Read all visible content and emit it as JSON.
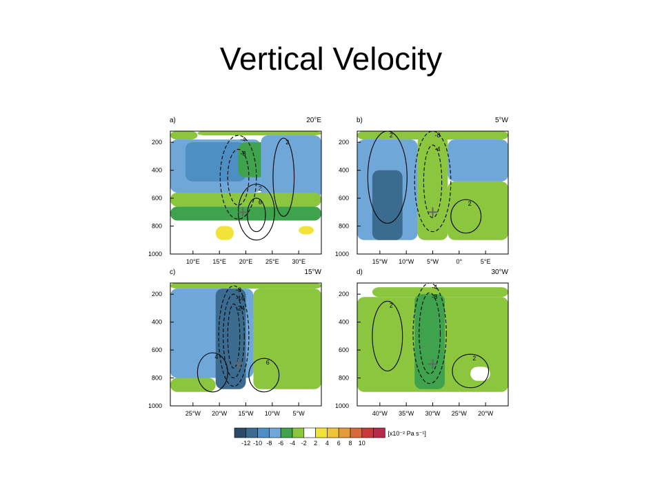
{
  "slide": {
    "title": "Vertical Velocity"
  },
  "colors": {
    "-12": "#2b4a68",
    "-10": "#3b6c8f",
    "-8": "#4d8fc2",
    "-6": "#6fa7d8",
    "-4": "#3fa34d",
    "-2": "#8cc63f",
    "0": "#ffffff",
    "2": "#f2e33a",
    "4": "#f0c437",
    "6": "#e39b3a",
    "8": "#d66a3d",
    "10": "#c9393c",
    "12": "#b52c4a"
  },
  "chart_data": [
    {
      "type": "heatmap",
      "panel_label": "a)",
      "section": "20°E",
      "xticks": [
        "10°E",
        "15°E",
        "20°E",
        "25°E",
        "30°E"
      ],
      "yticks": [
        "200",
        "400",
        "600",
        "800",
        "1000"
      ],
      "ylim": [
        1000,
        100
      ],
      "shading": [
        {
          "x": [
            0,
            0.18
          ],
          "p": [
            120,
            180
          ],
          "level": "-2"
        },
        {
          "x": [
            0.18,
            1
          ],
          "p": [
            120,
            150
          ],
          "level": "-2"
        },
        {
          "x": [
            0,
            0.6
          ],
          "p": [
            180,
            560
          ],
          "level": "-6"
        },
        {
          "x": [
            0.1,
            0.5
          ],
          "p": [
            200,
            480
          ],
          "level": "-8"
        },
        {
          "x": [
            0.45,
            0.8
          ],
          "p": [
            200,
            450
          ],
          "level": "-4"
        },
        {
          "x": [
            0.6,
            1
          ],
          "p": [
            150,
            600
          ],
          "level": "-6"
        },
        {
          "x": [
            0,
            1
          ],
          "p": [
            560,
            660
          ],
          "level": "-2"
        },
        {
          "x": [
            0,
            1
          ],
          "p": [
            660,
            760
          ],
          "level": "-4"
        },
        {
          "x": [
            0.3,
            0.42
          ],
          "p": [
            800,
            900
          ],
          "level": "2"
        },
        {
          "x": [
            0.85,
            0.95
          ],
          "p": [
            800,
            860
          ],
          "level": "2"
        }
      ],
      "contours": [
        {
          "cx": 0.45,
          "cp": 450,
          "rx": 0.12,
          "rp": 300,
          "dashed": true,
          "label": "-4"
        },
        {
          "cx": 0.45,
          "cp": 450,
          "rx": 0.07,
          "rp": 200,
          "dashed": true,
          "label": "-8"
        },
        {
          "cx": 0.57,
          "cp": 700,
          "rx": 0.12,
          "rp": 200,
          "dashed": false,
          "label": "2"
        },
        {
          "cx": 0.57,
          "cp": 720,
          "rx": 0.06,
          "rp": 120,
          "dashed": false,
          "label": "6"
        },
        {
          "cx": 0.75,
          "cp": 450,
          "rx": 0.07,
          "rp": 280,
          "dashed": false,
          "label": "2"
        }
      ],
      "marker": {
        "x": 0.48,
        "p": 700
      }
    },
    {
      "type": "heatmap",
      "panel_label": "b)",
      "section": "5°W",
      "xticks": [
        "15°W",
        "10°W",
        "5°W",
        "0°",
        "5°E"
      ],
      "yticks": [
        "200",
        "400",
        "600",
        "800",
        "1000"
      ],
      "ylim": [
        1000,
        100
      ],
      "shading": [
        {
          "x": [
            0,
            1
          ],
          "p": [
            120,
            180
          ],
          "level": "-2"
        },
        {
          "x": [
            0,
            0.4
          ],
          "p": [
            180,
            900
          ],
          "level": "-6"
        },
        {
          "x": [
            0.1,
            0.3
          ],
          "p": [
            400,
            900
          ],
          "level": "-10"
        },
        {
          "x": [
            0.4,
            0.6
          ],
          "p": [
            150,
            900
          ],
          "level": "-2"
        },
        {
          "x": [
            0.6,
            1
          ],
          "p": [
            180,
            480
          ],
          "level": "-6"
        },
        {
          "x": [
            0.6,
            1
          ],
          "p": [
            480,
            900
          ],
          "level": "-2"
        }
      ],
      "contours": [
        {
          "cx": 0.5,
          "cp": 480,
          "rx": 0.12,
          "rp": 360,
          "dashed": true,
          "label": "-8"
        },
        {
          "cx": 0.5,
          "cp": 480,
          "rx": 0.06,
          "rp": 260,
          "dashed": true,
          "label": "-4"
        },
        {
          "cx": 0.72,
          "cp": 730,
          "rx": 0.1,
          "rp": 120,
          "dashed": false,
          "label": "2"
        },
        {
          "cx": 0.2,
          "cp": 450,
          "rx": 0.13,
          "rp": 330,
          "dashed": false,
          "label": "2"
        }
      ],
      "marker": {
        "x": 0.5,
        "p": 700
      }
    },
    {
      "type": "heatmap",
      "panel_label": "c)",
      "section": "15°W",
      "xticks": [
        "25°W",
        "20°W",
        "15°W",
        "10°W",
        "5°W"
      ],
      "yticks": [
        "200",
        "400",
        "600",
        "800",
        "1000"
      ],
      "ylim": [
        1000,
        100
      ],
      "shading": [
        {
          "x": [
            0,
            1
          ],
          "p": [
            120,
            160
          ],
          "level": "-2"
        },
        {
          "x": [
            0,
            0.55
          ],
          "p": [
            160,
            800
          ],
          "level": "-6"
        },
        {
          "x": [
            0.3,
            0.5
          ],
          "p": [
            160,
            880
          ],
          "level": "-10"
        },
        {
          "x": [
            0.55,
            1
          ],
          "p": [
            160,
            880
          ],
          "level": "-2"
        },
        {
          "x": [
            0,
            0.3
          ],
          "p": [
            800,
            900
          ],
          "level": "-2"
        }
      ],
      "contours": [
        {
          "cx": 0.42,
          "cp": 500,
          "rx": 0.1,
          "rp": 360,
          "dashed": true,
          "label": "-8"
        },
        {
          "cx": 0.42,
          "cp": 500,
          "rx": 0.07,
          "rp": 300,
          "dashed": true,
          "label": "-16"
        },
        {
          "cx": 0.42,
          "cp": 500,
          "rx": 0.04,
          "rp": 230,
          "dashed": true,
          "label": "-24"
        },
        {
          "cx": 0.62,
          "cp": 780,
          "rx": 0.1,
          "rp": 120,
          "dashed": false,
          "label": "6"
        },
        {
          "cx": 0.28,
          "cp": 760,
          "rx": 0.1,
          "rp": 140,
          "dashed": false,
          "label": "4"
        }
      ],
      "marker": {
        "x": 0.45,
        "p": 700
      }
    },
    {
      "type": "heatmap",
      "panel_label": "d)",
      "section": "30°W",
      "xticks": [
        "40°W",
        "35°W",
        "30°W",
        "25°W",
        "20°W"
      ],
      "yticks": [
        "200",
        "400",
        "600",
        "800",
        "1000"
      ],
      "ylim": [
        1000,
        100
      ],
      "shading": [
        {
          "x": [
            0.1,
            1
          ],
          "p": [
            150,
            220
          ],
          "level": "-2"
        },
        {
          "x": [
            0,
            1
          ],
          "p": [
            220,
            900
          ],
          "level": "-2"
        },
        {
          "x": [
            0.38,
            0.58
          ],
          "p": [
            200,
            880
          ],
          "level": "-4"
        },
        {
          "x": [
            0.75,
            0.88
          ],
          "p": [
            720,
            820
          ],
          "level": "0"
        }
      ],
      "contours": [
        {
          "cx": 0.48,
          "cp": 480,
          "rx": 0.11,
          "rp": 360,
          "dashed": true,
          "label": "-4"
        },
        {
          "cx": 0.48,
          "cp": 480,
          "rx": 0.07,
          "rp": 290,
          "dashed": true,
          "label": "-8"
        },
        {
          "cx": 0.75,
          "cp": 750,
          "rx": 0.12,
          "rp": 120,
          "dashed": false,
          "label": "2"
        },
        {
          "cx": 0.2,
          "cp": 500,
          "rx": 0.1,
          "rp": 250,
          "dashed": false,
          "label": "2"
        }
      ],
      "marker": {
        "x": 0.5,
        "p": 700
      }
    }
  ],
  "colorbar": {
    "levels": [
      "-12",
      "-10",
      "-8",
      "-6",
      "-4",
      "-2",
      "2",
      "4",
      "6",
      "8",
      "10"
    ],
    "units": "[x10⁻² Pa s⁻¹]"
  }
}
